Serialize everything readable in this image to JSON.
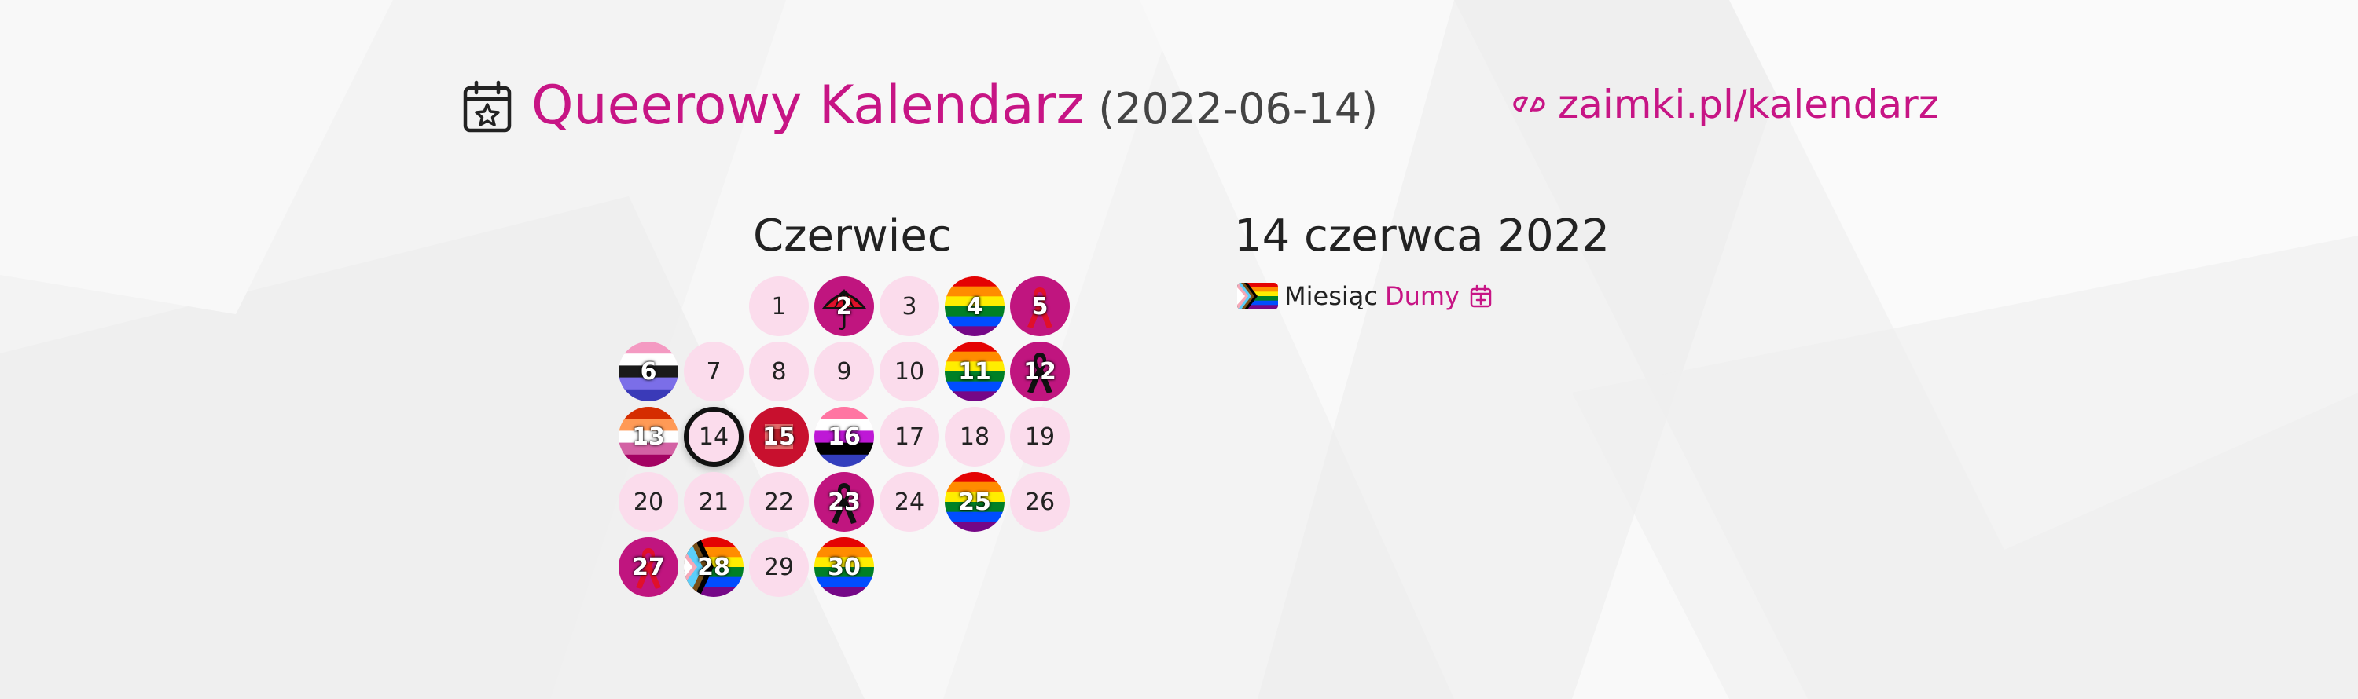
{
  "header": {
    "title": "Queerowy Kalendarz",
    "date": "(2022-06-14)",
    "site": "zaimki.pl/kalendarz"
  },
  "calendar": {
    "month": "Czerwiec",
    "selected_day": 14,
    "days": [
      {
        "day": "1",
        "style": "plain"
      },
      {
        "day": "2",
        "style": "umbrella"
      },
      {
        "day": "3",
        "style": "plain"
      },
      {
        "day": "4",
        "style": "rainbow"
      },
      {
        "day": "5",
        "style": "ribbon-red"
      },
      {
        "day": "6",
        "style": "flag-6"
      },
      {
        "day": "7",
        "style": "plain"
      },
      {
        "day": "8",
        "style": "plain"
      },
      {
        "day": "9",
        "style": "plain"
      },
      {
        "day": "10",
        "style": "plain"
      },
      {
        "day": "11",
        "style": "rainbow"
      },
      {
        "day": "12",
        "style": "ribbon-black"
      },
      {
        "day": "13",
        "style": "lesbian"
      },
      {
        "day": "14",
        "style": "today"
      },
      {
        "day": "15",
        "style": "red-square"
      },
      {
        "day": "16",
        "style": "genderfluid"
      },
      {
        "day": "17",
        "style": "plain"
      },
      {
        "day": "18",
        "style": "plain"
      },
      {
        "day": "19",
        "style": "plain"
      },
      {
        "day": "20",
        "style": "plain"
      },
      {
        "day": "21",
        "style": "plain"
      },
      {
        "day": "22",
        "style": "plain"
      },
      {
        "day": "23",
        "style": "ribbon-black"
      },
      {
        "day": "24",
        "style": "plain"
      },
      {
        "day": "25",
        "style": "rainbow"
      },
      {
        "day": "26",
        "style": "plain"
      },
      {
        "day": "27",
        "style": "ribbon-red"
      },
      {
        "day": "28",
        "style": "progress"
      },
      {
        "day": "29",
        "style": "plain"
      },
      {
        "day": "30",
        "style": "rainbow"
      }
    ]
  },
  "event": {
    "date": "14 czerwca 2022",
    "label": "Miesiąc",
    "link": "Dumy",
    "flag_icon": "progress-pride-flag-icon",
    "add_icon": "calendar-add-icon"
  },
  "colors": {
    "accent": "#c71585",
    "day_background": "#fbdcec"
  }
}
